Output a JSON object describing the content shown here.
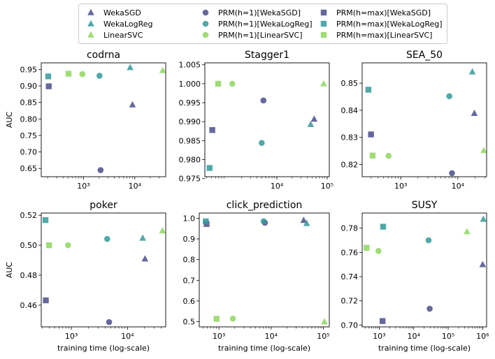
{
  "colors": {
    "WekaSGD": "#4a4e8c",
    "WekaLogReg": "#33999a",
    "LinearSVC": "#8ed65e"
  },
  "legend": {
    "entries": [
      {
        "label": "WekaSGD",
        "marker": "triangle",
        "color": "WekaSGD"
      },
      {
        "label": "WekaLogReg",
        "marker": "triangle",
        "color": "WekaLogReg"
      },
      {
        "label": "LinearSVC",
        "marker": "triangle",
        "color": "LinearSVC"
      },
      {
        "label": "PRM(h=1)[WekaSGD]",
        "marker": "circle",
        "color": "WekaSGD"
      },
      {
        "label": "PRM(h=1)[WekaLogReg]",
        "marker": "circle",
        "color": "WekaLogReg"
      },
      {
        "label": "PRM(h=1)[LinearSVC]",
        "marker": "circle",
        "color": "LinearSVC"
      },
      {
        "label": "PRM(h=max)[WekaSGD]",
        "marker": "square",
        "color": "WekaSGD"
      },
      {
        "label": "PRM(h=max)[WekaLogReg]",
        "marker": "square",
        "color": "WekaLogReg"
      },
      {
        "label": "PRM(h=max)[LinearSVC]",
        "marker": "square",
        "color": "LinearSVC"
      }
    ]
  },
  "chart_data": [
    {
      "type": "scatter",
      "title": "codrna",
      "xlabel": "",
      "ylabel": "AUC",
      "xscale": "log",
      "xlim": [
        150,
        40000
      ],
      "ylim": [
        0.625,
        0.97
      ],
      "xticks": [
        {
          "v": 1000,
          "label": "10³"
        },
        {
          "v": 10000,
          "label": "10⁴"
        }
      ],
      "yticks": [
        {
          "v": 0.65,
          "label": "0.65"
        },
        {
          "v": 0.7,
          "label": "0.70"
        },
        {
          "v": 0.75,
          "label": "0.75"
        },
        {
          "v": 0.8,
          "label": "0.80"
        },
        {
          "v": 0.85,
          "label": "0.85"
        },
        {
          "v": 0.9,
          "label": "0.90"
        },
        {
          "v": 0.95,
          "label": "0.95"
        }
      ],
      "points": [
        {
          "series": "WekaSGD",
          "x": 9000,
          "y": 0.843
        },
        {
          "series": "WekaLogReg",
          "x": 8100,
          "y": 0.956
        },
        {
          "series": "LinearSVC",
          "x": 35000,
          "y": 0.947
        },
        {
          "series": "PRM(h=1)[WekaSGD]",
          "x": 2150,
          "y": 0.645
        },
        {
          "series": "PRM(h=1)[WekaLogReg]",
          "x": 2050,
          "y": 0.931
        },
        {
          "series": "PRM(h=1)[LinearSVC]",
          "x": 950,
          "y": 0.936
        },
        {
          "series": "PRM(h=max)[WekaSGD]",
          "x": 210,
          "y": 0.899
        },
        {
          "series": "PRM(h=max)[WekaLogReg]",
          "x": 205,
          "y": 0.929
        },
        {
          "series": "PRM(h=max)[LinearSVC]",
          "x": 510,
          "y": 0.937
        }
      ]
    },
    {
      "type": "scatter",
      "title": "Stagger1",
      "xlabel": "",
      "ylabel": "",
      "xscale": "log",
      "xlim": [
        370,
        110000
      ],
      "ylim": [
        0.9755,
        1.0055
      ],
      "xticks": [
        {
          "v": 10000,
          "label": "10⁴"
        },
        {
          "v": 100000,
          "label": "10⁵"
        }
      ],
      "yticks": [
        {
          "v": 0.975,
          "label": "0.975"
        },
        {
          "v": 0.98,
          "label": "0.980"
        },
        {
          "v": 0.985,
          "label": "0.985"
        },
        {
          "v": 0.99,
          "label": "0.990"
        },
        {
          "v": 0.995,
          "label": "0.995"
        },
        {
          "v": 1.0,
          "label": "1.000"
        },
        {
          "v": 1.005,
          "label": "1.005"
        }
      ],
      "points": [
        {
          "series": "WekaSGD",
          "x": 55000,
          "y": 0.9907
        },
        {
          "series": "WekaLogReg",
          "x": 47000,
          "y": 0.9893
        },
        {
          "series": "LinearSVC",
          "x": 85000,
          "y": 1.0
        },
        {
          "series": "PRM(h=1)[WekaSGD]",
          "x": 5400,
          "y": 0.9956
        },
        {
          "series": "PRM(h=1)[WekaLogReg]",
          "x": 5000,
          "y": 0.9844
        },
        {
          "series": "PRM(h=1)[LinearSVC]",
          "x": 1300,
          "y": 1.0
        },
        {
          "series": "PRM(h=max)[WekaSGD]",
          "x": 520,
          "y": 0.9878
        },
        {
          "series": "PRM(h=max)[WekaLogReg]",
          "x": 460,
          "y": 0.9778
        },
        {
          "series": "PRM(h=max)[LinearSVC]",
          "x": 680,
          "y": 1.0
        }
      ]
    },
    {
      "type": "scatter",
      "title": "SEA_50",
      "xlabel": "",
      "ylabel": "",
      "xscale": "log",
      "xlim": [
        210,
        32000
      ],
      "ylim": [
        0.8155,
        0.8575
      ],
      "xticks": [
        {
          "v": 1000,
          "label": "10³"
        },
        {
          "v": 10000,
          "label": "10⁴"
        }
      ],
      "yticks": [
        {
          "v": 0.82,
          "label": "0.82"
        },
        {
          "v": 0.83,
          "label": "0.83"
        },
        {
          "v": 0.84,
          "label": "0.84"
        },
        {
          "v": 0.85,
          "label": "0.85"
        }
      ],
      "points": [
        {
          "series": "WekaSGD",
          "x": 19500,
          "y": 0.8389
        },
        {
          "series": "WekaLogReg",
          "x": 18000,
          "y": 0.8542
        },
        {
          "series": "LinearSVC",
          "x": 28500,
          "y": 0.8252
        },
        {
          "series": "PRM(h=1)[WekaSGD]",
          "x": 7900,
          "y": 0.8168
        },
        {
          "series": "PRM(h=1)[WekaLogReg]",
          "x": 7100,
          "y": 0.8452
        },
        {
          "series": "PRM(h=1)[LinearSVC]",
          "x": 610,
          "y": 0.8232
        },
        {
          "series": "PRM(h=max)[WekaSGD]",
          "x": 300,
          "y": 0.8311
        },
        {
          "series": "PRM(h=max)[WekaLogReg]",
          "x": 270,
          "y": 0.8476
        },
        {
          "series": "PRM(h=max)[LinearSVC]",
          "x": 320,
          "y": 0.8233
        }
      ]
    },
    {
      "type": "scatter",
      "title": "poker",
      "xlabel": "training time (log-scale)",
      "ylabel": "AUC",
      "xscale": "log",
      "xlim": [
        290,
        48000
      ],
      "ylim": [
        0.4455,
        0.5215
      ],
      "xticks": [
        {
          "v": 1000,
          "label": "10³"
        },
        {
          "v": 10000,
          "label": "10⁴"
        }
      ],
      "yticks": [
        {
          "v": 0.46,
          "label": "0.46"
        },
        {
          "v": 0.48,
          "label": "0.48"
        },
        {
          "v": 0.5,
          "label": "0.50"
        },
        {
          "v": 0.52,
          "label": "0.52"
        }
      ],
      "points": [
        {
          "series": "WekaSGD",
          "x": 20500,
          "y": 0.4909
        },
        {
          "series": "WekaLogReg",
          "x": 18700,
          "y": 0.5048
        },
        {
          "series": "LinearSVC",
          "x": 42000,
          "y": 0.5097
        },
        {
          "series": "PRM(h=1)[WekaSGD]",
          "x": 4700,
          "y": 0.4487
        },
        {
          "series": "PRM(h=1)[WekaLogReg]",
          "x": 4350,
          "y": 0.5042
        },
        {
          "series": "PRM(h=1)[LinearSVC]",
          "x": 870,
          "y": 0.5
        },
        {
          "series": "PRM(h=max)[WekaSGD]",
          "x": 350,
          "y": 0.4632
        },
        {
          "series": "PRM(h=max)[WekaLogReg]",
          "x": 345,
          "y": 0.5168
        },
        {
          "series": "PRM(h=max)[LinearSVC]",
          "x": 400,
          "y": 0.5
        }
      ]
    },
    {
      "type": "scatter",
      "title": "click_prediction",
      "xlabel": "training time (log-scale)",
      "ylabel": "",
      "xscale": "log",
      "xlim": [
        420,
        130000
      ],
      "ylim": [
        0.475,
        1.025
      ],
      "xticks": [
        {
          "v": 1000,
          "label": "10³"
        },
        {
          "v": 10000,
          "label": "10⁴"
        },
        {
          "v": 100000,
          "label": "10⁵"
        }
      ],
      "yticks": [
        {
          "v": 0.5,
          "label": "0.5"
        },
        {
          "v": 0.6,
          "label": "0.6"
        },
        {
          "v": 0.7,
          "label": "0.7"
        },
        {
          "v": 0.8,
          "label": "0.8"
        },
        {
          "v": 0.9,
          "label": "0.9"
        },
        {
          "v": 1.0,
          "label": "1.0"
        }
      ],
      "points": [
        {
          "series": "WekaSGD",
          "x": 42000,
          "y": 0.99
        },
        {
          "series": "WekaLogReg",
          "x": 48000,
          "y": 0.975
        },
        {
          "series": "LinearSVC",
          "x": 105000,
          "y": 0.5
        },
        {
          "series": "PRM(h=1)[WekaSGD]",
          "x": 7600,
          "y": 0.978
        },
        {
          "series": "PRM(h=1)[WekaLogReg]",
          "x": 7200,
          "y": 0.985
        },
        {
          "series": "PRM(h=1)[LinearSVC]",
          "x": 1850,
          "y": 0.515
        },
        {
          "series": "PRM(h=max)[WekaSGD]",
          "x": 580,
          "y": 0.972
        },
        {
          "series": "PRM(h=max)[WekaLogReg]",
          "x": 560,
          "y": 0.985
        },
        {
          "series": "PRM(h=max)[LinearSVC]",
          "x": 900,
          "y": 0.514
        }
      ]
    },
    {
      "type": "scatter",
      "title": "SUSY",
      "xlabel": "training time (log-scale)",
      "ylabel": "",
      "xscale": "log",
      "xlim": [
        320,
        1300000
      ],
      "ylim": [
        0.6985,
        0.7925
      ],
      "xticks": [
        {
          "v": 1000,
          "label": "10³"
        },
        {
          "v": 10000,
          "label": "10⁴"
        },
        {
          "v": 100000,
          "label": "10⁵"
        },
        {
          "v": 1000000,
          "label": "10⁶"
        }
      ],
      "yticks": [
        {
          "v": 0.7,
          "label": "0.70"
        },
        {
          "v": 0.72,
          "label": "0.72"
        },
        {
          "v": 0.74,
          "label": "0.74"
        },
        {
          "v": 0.76,
          "label": "0.76"
        },
        {
          "v": 0.78,
          "label": "0.78"
        }
      ],
      "points": [
        {
          "series": "WekaSGD",
          "x": 1000000,
          "y": 0.75
        },
        {
          "series": "WekaLogReg",
          "x": 1050000,
          "y": 0.7875
        },
        {
          "series": "LinearSVC",
          "x": 350000,
          "y": 0.7772
        },
        {
          "series": "PRM(h=1)[WekaSGD]",
          "x": 29000,
          "y": 0.7135
        },
        {
          "series": "PRM(h=1)[WekaLogReg]",
          "x": 27000,
          "y": 0.77
        },
        {
          "series": "PRM(h=1)[LinearSVC]",
          "x": 950,
          "y": 0.7612
        },
        {
          "series": "PRM(h=max)[WekaSGD]",
          "x": 1250,
          "y": 0.7033
        },
        {
          "series": "PRM(h=max)[WekaLogReg]",
          "x": 1300,
          "y": 0.7812
        },
        {
          "series": "PRM(h=max)[LinearSVC]",
          "x": 430,
          "y": 0.7638
        }
      ]
    }
  ]
}
